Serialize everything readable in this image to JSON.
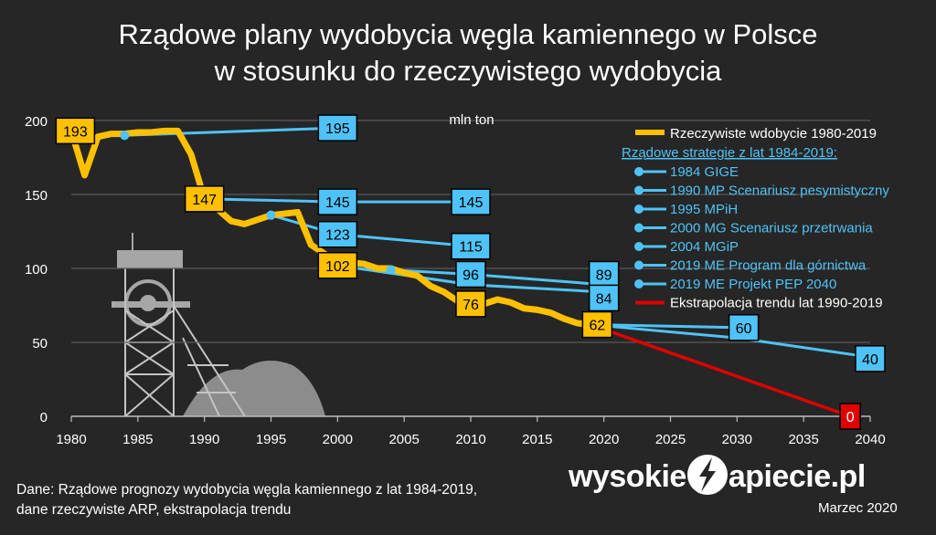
{
  "title_line1": "Rządowe plany wydobycia węgla kamiennego w Polsce",
  "title_line2": "w stosunku do rzeczywistego wydobycia",
  "footnote_line1": "Dane: Rządowe prognozy wydobycia węgla kamiennego z lat 1984-2019,",
  "footnote_line2": "dane rzeczywiste ARP, ekstrapolacja trendu",
  "date": "Marzec 2020",
  "logo": {
    "left": "wysokie",
    "right": "apiecie.pl",
    "icon": "lightning-n-icon"
  },
  "colors": {
    "background": "#262626",
    "actual": "#FFC000",
    "plans": "#4FC3F7",
    "trend": "#E00000",
    "label_box": "#FFC000",
    "plan_box": "#4FC3F7",
    "trend_box": "#E00000"
  },
  "chart_data": {
    "type": "line",
    "unit_label": "mln ton",
    "xlim": [
      1980,
      2040
    ],
    "ylim": [
      0,
      200
    ],
    "x_ticks": [
      "1980",
      "1985",
      "1990",
      "1995",
      "2000",
      "2005",
      "2010",
      "2015",
      "2020",
      "2025",
      "2030",
      "2035",
      "2040"
    ],
    "y_ticks": [
      "0",
      "50",
      "100",
      "150",
      "200"
    ],
    "legend": {
      "position": "top-right",
      "actual_label": "Rzeczywiste wdobycie 1980-2019",
      "plans_header": "Rządowe strategie z lat 1984-2019:",
      "trend_label": "Ekstrapolacja trendu lat 1990-2019"
    },
    "actual": {
      "name": "Rzeczywiste wdobycie 1980-2019",
      "x": [
        1980,
        1981,
        1982,
        1983,
        1984,
        1985,
        1986,
        1987,
        1988,
        1989,
        1990,
        1991,
        1992,
        1993,
        1994,
        1995,
        1996,
        1997,
        1998,
        1999,
        2000,
        2001,
        2002,
        2003,
        2004,
        2005,
        2006,
        2007,
        2008,
        2009,
        2010,
        2011,
        2012,
        2013,
        2014,
        2015,
        2016,
        2017,
        2018,
        2019
      ],
      "y": [
        193,
        163,
        189,
        191,
        191,
        192,
        192,
        193,
        193,
        177,
        147,
        140,
        132,
        130,
        133,
        136,
        137,
        138,
        116,
        110,
        102,
        104,
        103,
        100,
        100,
        97,
        95,
        88,
        84,
        78,
        76,
        76,
        79,
        77,
        73,
        72,
        70,
        66,
        63,
        62
      ]
    },
    "plans": [
      {
        "name": "1984 GIGE",
        "x": [
          1984,
          2000
        ],
        "y": [
          190,
          195
        ]
      },
      {
        "name": "1990 MP Scenariusz pesymistyczny",
        "x": [
          1990,
          2000,
          2010
        ],
        "y": [
          147,
          145,
          145
        ]
      },
      {
        "name": "1995 MPiH",
        "x": [
          1995,
          2000,
          2010
        ],
        "y": [
          136,
          123,
          115
        ]
      },
      {
        "name": "2000 MG Scenariusz przetrwania",
        "x": [
          2000,
          2010,
          2020
        ],
        "y": [
          102,
          89,
          84
        ]
      },
      {
        "name": "2004 MGiP",
        "x": [
          2004,
          2010,
          2020
        ],
        "y": [
          99,
          96,
          89
        ]
      },
      {
        "name": "2019 ME Program dla górnictwa",
        "x": [
          2019,
          2030
        ],
        "y": [
          62,
          60
        ]
      },
      {
        "name": "2019 ME Projekt PEP 2040",
        "x": [
          2019,
          2030,
          2040
        ],
        "y": [
          62,
          53,
          40
        ]
      }
    ],
    "trend": {
      "name": "Ekstrapolacja trendu lat 1990-2019",
      "x": [
        2019,
        2038.5
      ],
      "y": [
        62,
        0
      ]
    },
    "labels": [
      {
        "text": "193",
        "x": 1980.3,
        "y": 193,
        "kind": "actual"
      },
      {
        "text": "147",
        "x": 1990,
        "y": 147,
        "kind": "actual"
      },
      {
        "text": "102",
        "x": 2000,
        "y": 102,
        "kind": "actual"
      },
      {
        "text": "76",
        "x": 2010,
        "y": 76,
        "kind": "actual"
      },
      {
        "text": "62",
        "x": 2019.5,
        "y": 62,
        "kind": "actual"
      },
      {
        "text": "195",
        "x": 2000,
        "y": 195,
        "kind": "plan"
      },
      {
        "text": "145",
        "x": 2000,
        "y": 145,
        "kind": "plan"
      },
      {
        "text": "145",
        "x": 2010,
        "y": 145,
        "kind": "plan"
      },
      {
        "text": "123",
        "x": 2000,
        "y": 123,
        "kind": "plan"
      },
      {
        "text": "115",
        "x": 2010,
        "y": 115,
        "kind": "plan"
      },
      {
        "text": "96",
        "x": 2010,
        "y": 96,
        "kind": "plan"
      },
      {
        "text": "89",
        "x": 2020,
        "y": 96,
        "kind": "plan"
      },
      {
        "text": "84",
        "x": 2020,
        "y": 80,
        "kind": "plan"
      },
      {
        "text": "60",
        "x": 2030.5,
        "y": 60,
        "kind": "plan"
      },
      {
        "text": "40",
        "x": 2040,
        "y": 39,
        "kind": "plan"
      },
      {
        "text": "0",
        "x": 2038.5,
        "y": 0,
        "kind": "trend"
      }
    ]
  }
}
